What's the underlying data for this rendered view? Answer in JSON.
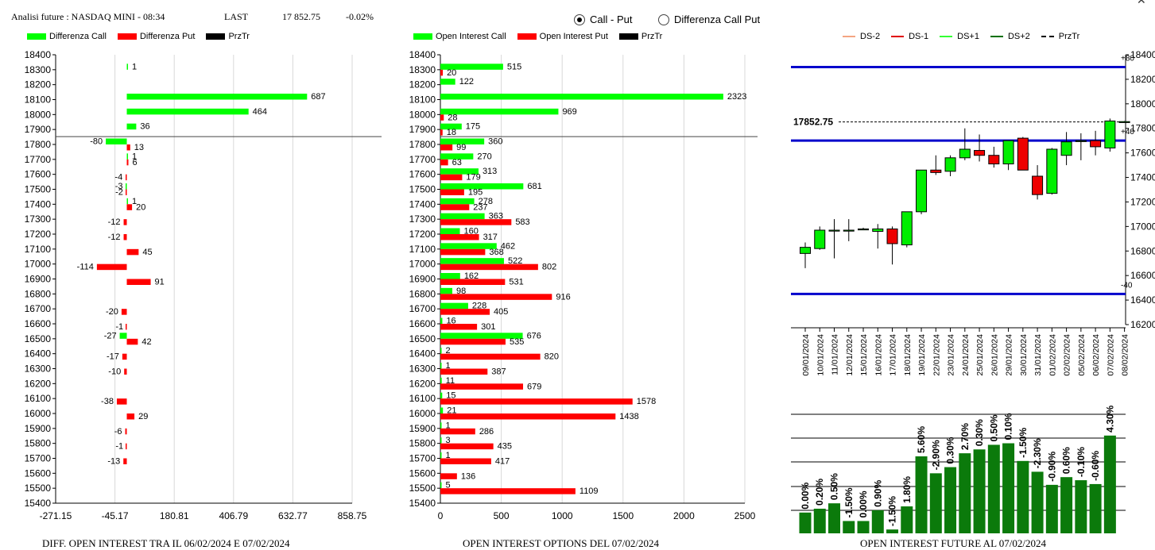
{
  "header": {
    "title": "Analisi future : NASDAQ MINI - 08:34",
    "last_label": "LAST",
    "last_value": "17 852.75",
    "change": "-0.02%"
  },
  "radios": [
    {
      "label": "Call - Put",
      "selected": true
    },
    {
      "label": "Differenza Call Put",
      "selected": false
    }
  ],
  "legend1": [
    {
      "label": "Differenza Call",
      "color": "#00ff00"
    },
    {
      "label": "Differenza Put",
      "color": "#ff0000"
    },
    {
      "label": "PrzTr",
      "color": "#000000"
    }
  ],
  "legend2": [
    {
      "label": "Open Interest Call",
      "color": "#00ff00"
    },
    {
      "label": "Open Interest Put",
      "color": "#ff0000"
    },
    {
      "label": "PrzTr",
      "color": "#000000"
    }
  ],
  "legend3": [
    {
      "label": "DS-2",
      "color": "#f4a582",
      "style": "solid"
    },
    {
      "label": "DS-1",
      "color": "#e00000",
      "style": "solid"
    },
    {
      "label": "DS+1",
      "color": "#33ff33",
      "style": "solid"
    },
    {
      "label": "DS+2",
      "color": "#007000",
      "style": "solid"
    },
    {
      "label": "PrzTr",
      "color": "#000000",
      "style": "dashed"
    }
  ],
  "footers": {
    "chart1": "DIFF. OPEN INTEREST TRA IL 06/02/2024 E 07/02/2024",
    "chart2": "OPEN INTEREST OPTIONS DEL 07/02/2024",
    "chart3": "OPEN INTEREST FUTURE AL 07/02/2024"
  },
  "chart_data": [
    {
      "type": "bar",
      "orientation": "horizontal",
      "strikes": [
        18400,
        18300,
        18200,
        18100,
        18000,
        17900,
        17800,
        17700,
        17600,
        17500,
        17400,
        17300,
        17200,
        17100,
        17000,
        16900,
        16800,
        16700,
        16600,
        16500,
        16400,
        16300,
        16200,
        16100,
        16000,
        15900,
        15800,
        15700,
        15600,
        15500,
        15400
      ],
      "xticks": [
        "-271.15",
        "-45.17",
        "180.81",
        "406.79",
        "632.77",
        "858.75"
      ],
      "xlim": [
        -271.15,
        858.75
      ],
      "price": 17852.75,
      "series": [
        {
          "name": "Differenza Call",
          "color": "#00ff00",
          "values": [
            null,
            1,
            null,
            687,
            464,
            36,
            -80,
            1,
            null,
            -3,
            1,
            null,
            null,
            null,
            null,
            null,
            null,
            null,
            null,
            -27,
            null,
            null,
            null,
            null,
            null,
            null,
            null,
            null,
            null,
            null,
            null
          ]
        },
        {
          "name": "Differenza Put",
          "color": "#ff0000",
          "values": [
            null,
            null,
            null,
            null,
            null,
            null,
            13,
            6,
            -4,
            -2,
            20,
            -12,
            -12,
            45,
            -114,
            91,
            null,
            -20,
            -1,
            42,
            -17,
            -10,
            null,
            -38,
            29,
            -6,
            -1,
            -13,
            null,
            null,
            null
          ]
        }
      ]
    },
    {
      "type": "bar",
      "orientation": "horizontal",
      "strikes": [
        18400,
        18300,
        18200,
        18100,
        18000,
        17900,
        17800,
        17700,
        17600,
        17500,
        17400,
        17300,
        17200,
        17100,
        17000,
        16900,
        16800,
        16700,
        16600,
        16500,
        16400,
        16300,
        16200,
        16100,
        16000,
        15900,
        15800,
        15700,
        15600,
        15500,
        15400
      ],
      "xticks": [
        "0",
        "500",
        "1000",
        "1500",
        "2000",
        "2500"
      ],
      "xlim": [
        0,
        2500
      ],
      "price": 17852.75,
      "series": [
        {
          "name": "Open Interest Call",
          "color": "#00ff00",
          "values": [
            null,
            515,
            122,
            2323,
            969,
            175,
            360,
            270,
            313,
            681,
            278,
            363,
            160,
            462,
            522,
            162,
            98,
            228,
            16,
            676,
            2,
            1,
            11,
            15,
            21,
            1,
            3,
            1,
            null,
            5,
            null
          ]
        },
        {
          "name": "Open Interest Put",
          "color": "#ff0000",
          "values": [
            null,
            20,
            null,
            null,
            28,
            18,
            99,
            63,
            179,
            195,
            237,
            583,
            317,
            368,
            802,
            531,
            916,
            405,
            301,
            535,
            820,
            387,
            679,
            1578,
            1438,
            286,
            435,
            417,
            136,
            1109,
            null
          ]
        }
      ]
    },
    {
      "type": "candlestick",
      "dates": [
        "09/01/2024",
        "10/01/2024",
        "11/01/2024",
        "12/01/2024",
        "15/01/2024",
        "16/01/2024",
        "17/01/2024",
        "18/01/2024",
        "19/01/2024",
        "22/01/2024",
        "23/01/2024",
        "24/01/2024",
        "25/01/2024",
        "26/01/2024",
        "29/01/2024",
        "30/01/2024",
        "31/01/2024",
        "01/02/2024",
        "02/02/2024",
        "05/02/2024",
        "06/02/2024",
        "07/02/2024",
        "08/02/2024"
      ],
      "yticks": [
        "18400",
        "18200",
        "18000",
        "17800",
        "17600",
        "17400",
        "17200",
        "17000",
        "16800",
        "16600",
        "16400",
        "16200"
      ],
      "ylim": [
        16200,
        18400
      ],
      "price_label": "17852.75",
      "price": 17852.75,
      "bands": [
        {
          "label": "+80",
          "value": 18300
        },
        {
          "label": "+40",
          "value": 17700
        },
        {
          "label": "-40",
          "value": 16450
        }
      ],
      "candles": [
        {
          "o": 16780,
          "h": 16870,
          "l": 16660,
          "c": 16830
        },
        {
          "o": 16820,
          "h": 17000,
          "l": 16810,
          "c": 16970
        },
        {
          "o": 16970,
          "h": 17060,
          "l": 16740,
          "c": 16970
        },
        {
          "o": 16970,
          "h": 17060,
          "l": 16880,
          "c": 16970
        },
        {
          "o": 16980,
          "h": 16990,
          "l": 16970,
          "c": 16980
        },
        {
          "o": 16960,
          "h": 17020,
          "l": 16820,
          "c": 16980
        },
        {
          "o": 16980,
          "h": 17000,
          "l": 16690,
          "c": 16860
        },
        {
          "o": 16850,
          "h": 17120,
          "l": 16830,
          "c": 17120
        },
        {
          "o": 17120,
          "h": 17460,
          "l": 17100,
          "c": 17460
        },
        {
          "o": 17460,
          "h": 17580,
          "l": 17420,
          "c": 17440
        },
        {
          "o": 17450,
          "h": 17580,
          "l": 17410,
          "c": 17560
        },
        {
          "o": 17560,
          "h": 17800,
          "l": 17540,
          "c": 17630
        },
        {
          "o": 17620,
          "h": 17750,
          "l": 17530,
          "c": 17580
        },
        {
          "o": 17580,
          "h": 17650,
          "l": 17480,
          "c": 17510
        },
        {
          "o": 17510,
          "h": 17700,
          "l": 17460,
          "c": 17700
        },
        {
          "o": 17720,
          "h": 17730,
          "l": 17460,
          "c": 17460
        },
        {
          "o": 17410,
          "h": 17500,
          "l": 17220,
          "c": 17260
        },
        {
          "o": 17270,
          "h": 17640,
          "l": 17260,
          "c": 17630
        },
        {
          "o": 17580,
          "h": 17770,
          "l": 17500,
          "c": 17690
        },
        {
          "o": 17700,
          "h": 17760,
          "l": 17540,
          "c": 17700
        },
        {
          "o": 17700,
          "h": 17780,
          "l": 17580,
          "c": 17650
        },
        {
          "o": 17640,
          "h": 17880,
          "l": 17610,
          "c": 17860
        },
        {
          "o": 17855,
          "h": 17860,
          "l": 17850,
          "c": 17855
        }
      ],
      "oi_change_percent": [
        "0.00%",
        "0.20%",
        "0.50%",
        "-1.50%",
        "0.00%",
        "0.90%",
        "-1.50%",
        "1.80%",
        "5.60%",
        "-2.90%",
        "0.30%",
        "2.70%",
        "0.30%",
        "0.50%",
        "0.10%",
        "-1.50%",
        "-2.30%",
        "-0.90%",
        "0.60%",
        "-0.10%",
        "-0.60%",
        "4.30%"
      ],
      "oi_bar_heights": [
        0.27,
        0.32,
        0.39,
        0.16,
        0.16,
        0.3,
        0.05,
        0.35,
        1.0,
        0.78,
        0.86,
        1.04,
        1.09,
        1.15,
        1.17,
        0.94,
        0.8,
        0.63,
        0.73,
        0.69,
        0.64,
        1.27
      ]
    }
  ]
}
